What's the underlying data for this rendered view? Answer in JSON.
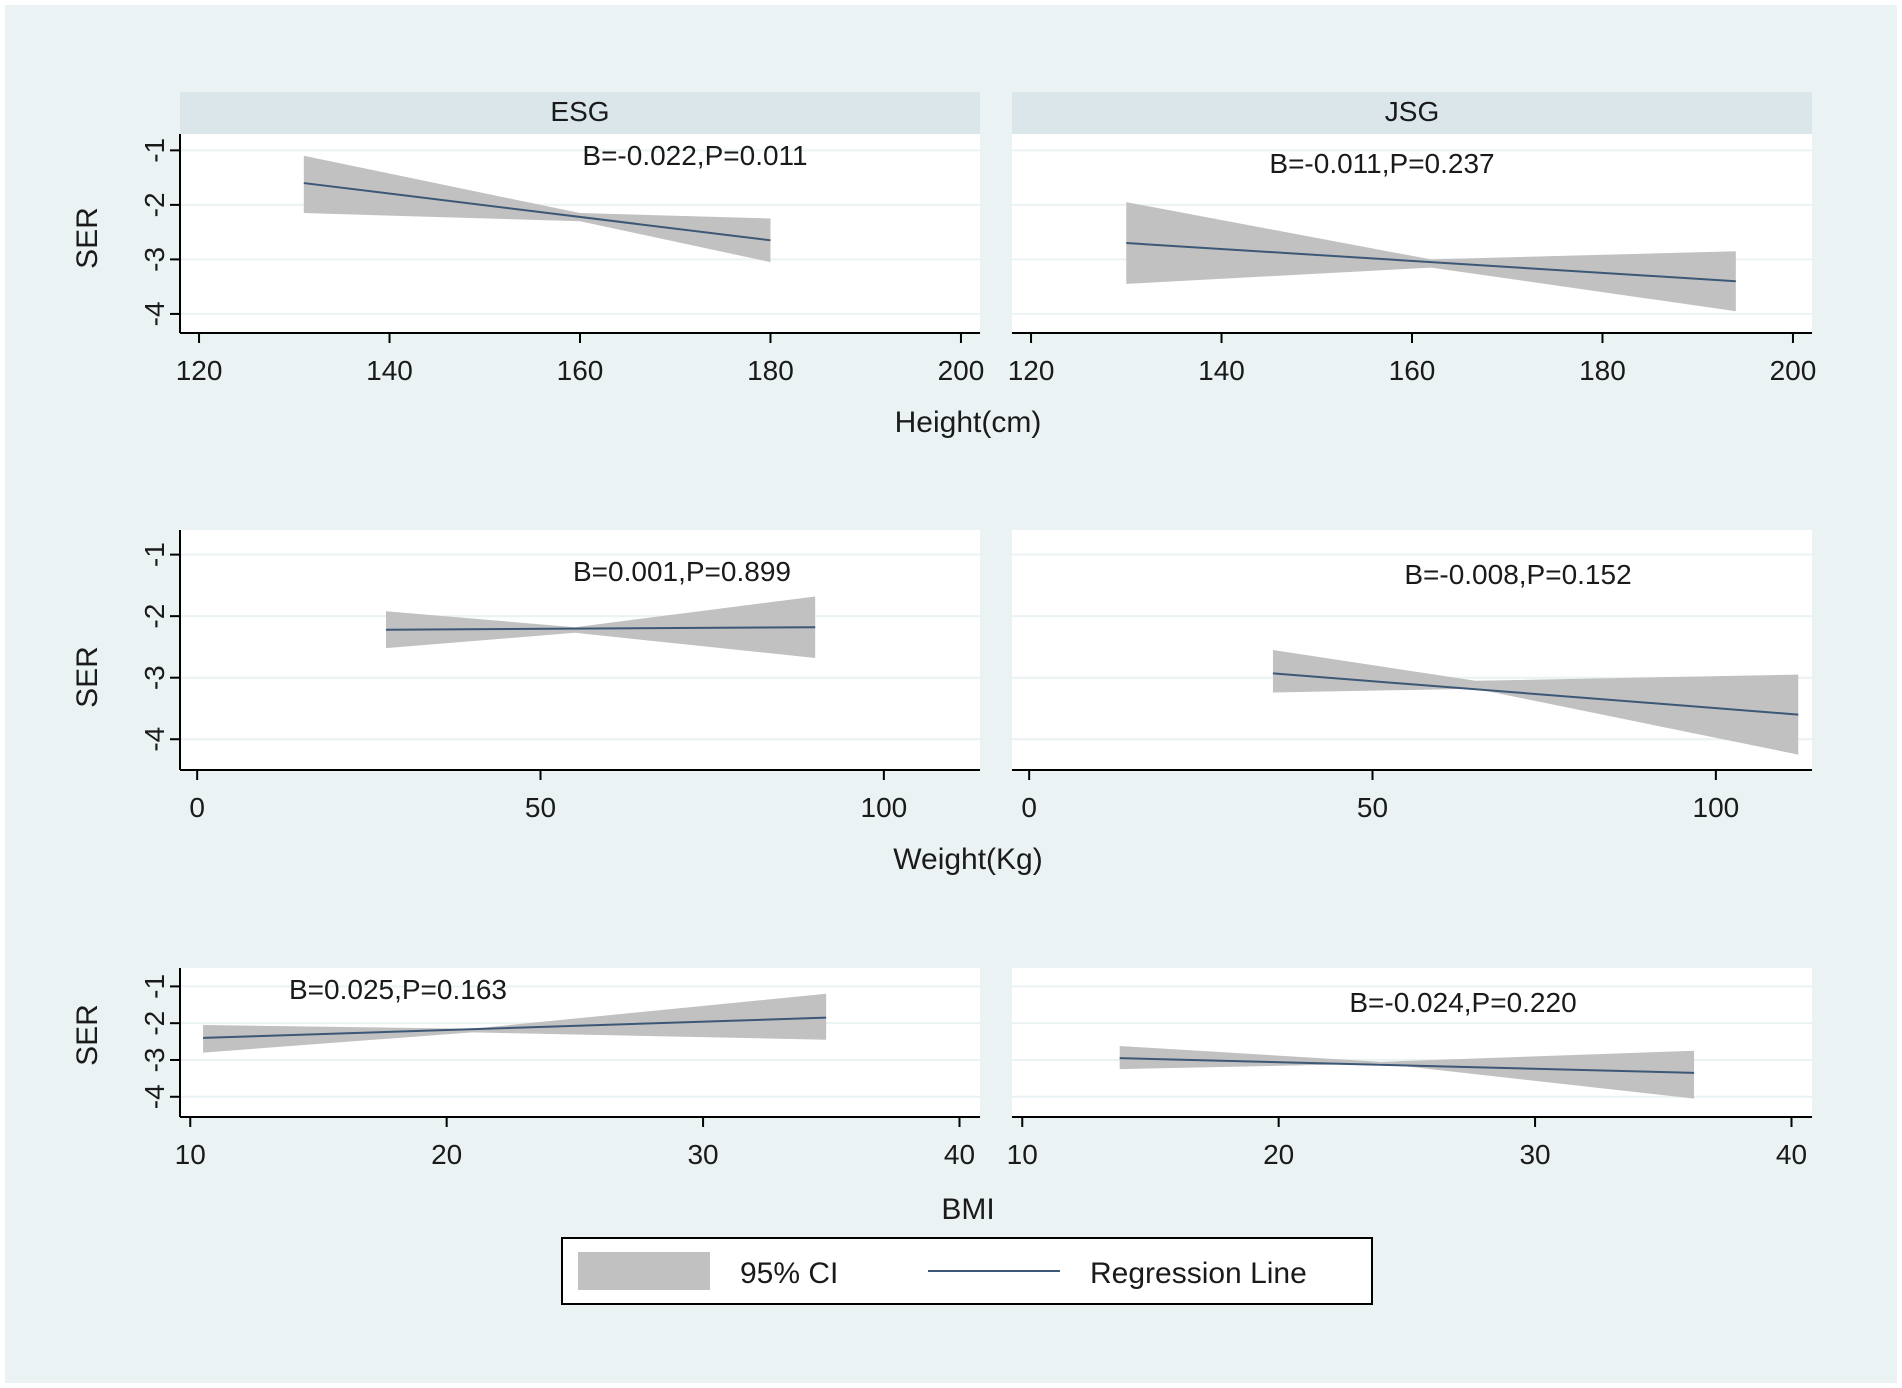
{
  "colors": {
    "outer_background": "#eaf2f3",
    "plot_background": "#ffffff",
    "strip_background": "#dae6ea",
    "ci_fill": "#c1c1c1",
    "regression_line": "#3c5876",
    "gridline": "#eaf2f3",
    "axis": "#000000"
  },
  "columns": [
    "ESG",
    "JSG"
  ],
  "legend": {
    "position": "bottom-center",
    "ci_label": "95% CI",
    "line_label": "Regression Line"
  },
  "chart_data": [
    {
      "type": "line",
      "group": "ESG",
      "row": "height",
      "xlabel": "Height(cm)",
      "ylabel": "SER",
      "xlim": [
        118,
        202
      ],
      "ylim": [
        -4.35,
        -0.7
      ],
      "xticks": [
        120,
        140,
        160,
        180,
        200
      ],
      "yticks": [
        -1,
        -2,
        -3,
        -4
      ],
      "grid": true,
      "annotation": "B=-0.022,P=0.011",
      "series": [
        {
          "name": "Regression Line",
          "x": [
            131,
            180
          ],
          "y": [
            -1.6,
            -2.65
          ]
        },
        {
          "name": "95% CI",
          "x": [
            131,
            160,
            180
          ],
          "lower": [
            -2.15,
            -2.3,
            -3.05
          ],
          "upper": [
            -1.1,
            -2.15,
            -2.25
          ]
        }
      ]
    },
    {
      "type": "line",
      "group": "JSG",
      "row": "height",
      "xlabel": "Height(cm)",
      "ylabel": "SER",
      "xlim": [
        118,
        202
      ],
      "ylim": [
        -4.35,
        -0.7
      ],
      "xticks": [
        120,
        140,
        160,
        180,
        200
      ],
      "yticks": [
        -1,
        -2,
        -3,
        -4
      ],
      "grid": true,
      "annotation": "B=-0.011,P=0.237",
      "series": [
        {
          "name": "Regression Line",
          "x": [
            130,
            194
          ],
          "y": [
            -2.7,
            -3.4
          ]
        },
        {
          "name": "95% CI",
          "x": [
            130,
            162,
            194
          ],
          "lower": [
            -3.45,
            -3.15,
            -3.95
          ],
          "upper": [
            -1.95,
            -3.0,
            -2.85
          ]
        }
      ]
    },
    {
      "type": "line",
      "group": "ESG",
      "row": "weight",
      "xlabel": "Weight(Kg)",
      "ylabel": "SER",
      "xlim": [
        -2.5,
        114
      ],
      "ylim": [
        -4.5,
        -0.6
      ],
      "xticks": [
        0,
        50,
        100
      ],
      "yticks": [
        -1,
        -2,
        -3,
        -4
      ],
      "grid": true,
      "annotation": "B=0.001,P=0.899",
      "series": [
        {
          "name": "Regression Line",
          "x": [
            27.5,
            90
          ],
          "y": [
            -2.22,
            -2.18
          ]
        },
        {
          "name": "95% CI",
          "x": [
            27.5,
            55,
            90
          ],
          "lower": [
            -2.52,
            -2.27,
            -2.68
          ],
          "upper": [
            -1.92,
            -2.18,
            -1.68
          ]
        }
      ]
    },
    {
      "type": "line",
      "group": "JSG",
      "row": "weight",
      "xlabel": "Weight(Kg)",
      "ylabel": "SER",
      "xlim": [
        -2.5,
        114
      ],
      "ylim": [
        -4.5,
        -0.6
      ],
      "xticks": [
        0,
        50,
        100
      ],
      "yticks": [
        -1,
        -2,
        -3,
        -4
      ],
      "grid": true,
      "annotation": "B=-0.008,P=0.152",
      "series": [
        {
          "name": "Regression Line",
          "x": [
            35.5,
            112
          ],
          "y": [
            -2.93,
            -3.6
          ]
        },
        {
          "name": "95% CI",
          "x": [
            35.5,
            65,
            112
          ],
          "lower": [
            -3.24,
            -3.18,
            -4.25
          ],
          "upper": [
            -2.55,
            -3.05,
            -2.95
          ]
        }
      ]
    },
    {
      "type": "line",
      "group": "ESG",
      "row": "bmi",
      "xlabel": "BMI",
      "ylabel": "SER",
      "xlim": [
        9.6,
        40.8
      ],
      "ylim": [
        -4.55,
        -0.5
      ],
      "xticks": [
        10,
        20,
        30,
        40
      ],
      "yticks": [
        -1,
        -2,
        -3,
        -4
      ],
      "grid": true,
      "annotation": "B=0.025,P=0.163",
      "series": [
        {
          "name": "Regression Line",
          "x": [
            10.5,
            34.8
          ],
          "y": [
            -2.4,
            -1.85
          ]
        },
        {
          "name": "95% CI",
          "x": [
            10.5,
            21,
            34.8
          ],
          "lower": [
            -2.8,
            -2.25,
            -2.45
          ],
          "upper": [
            -2.05,
            -2.15,
            -1.2
          ]
        }
      ]
    },
    {
      "type": "line",
      "group": "JSG",
      "row": "bmi",
      "xlabel": "BMI",
      "ylabel": "SER",
      "xlim": [
        9.6,
        40.8
      ],
      "ylim": [
        -4.55,
        -0.5
      ],
      "xticks": [
        10,
        20,
        30,
        40
      ],
      "yticks": [
        -1,
        -2,
        -3,
        -4
      ],
      "grid": true,
      "annotation": "B=-0.024,P=0.220",
      "series": [
        {
          "name": "Regression Line",
          "x": [
            13.8,
            36.2
          ],
          "y": [
            -2.95,
            -3.35
          ]
        },
        {
          "name": "95% CI",
          "x": [
            13.8,
            24,
            36.2
          ],
          "lower": [
            -3.25,
            -3.1,
            -4.05
          ],
          "upper": [
            -2.62,
            -3.05,
            -2.75
          ]
        }
      ]
    }
  ]
}
